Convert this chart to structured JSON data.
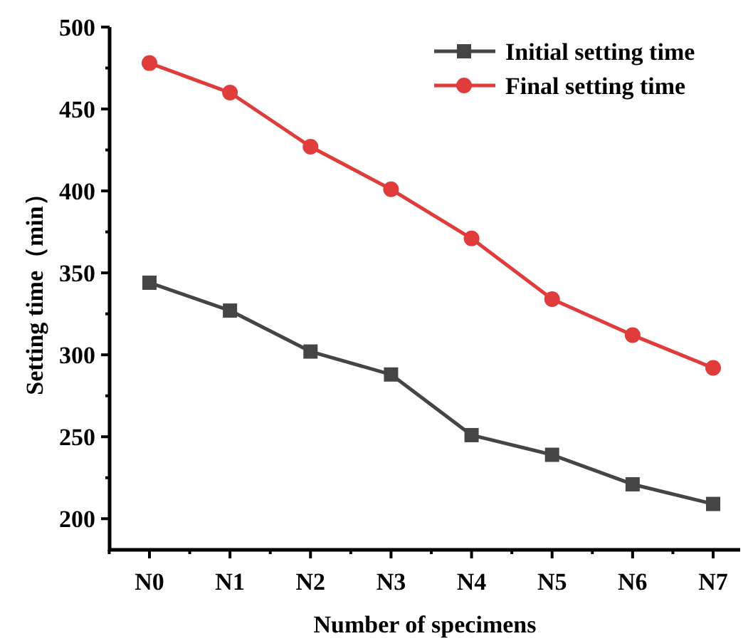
{
  "chart_data": {
    "type": "line",
    "xlabel": "Number of specimens",
    "ylabel": "Setting time（min）",
    "categories": [
      "N0",
      "N1",
      "N2",
      "N3",
      "N4",
      "N5",
      "N6",
      "N7"
    ],
    "series": [
      {
        "name": "Initial setting time",
        "color": "#454545",
        "marker": "square",
        "values": [
          344,
          327,
          302,
          288,
          251,
          239,
          221,
          209
        ]
      },
      {
        "name": "Final setting time",
        "color": "#e03c3c",
        "marker": "circle",
        "values": [
          478,
          460,
          427,
          401,
          371,
          334,
          312,
          292
        ]
      }
    ],
    "ylim": [
      181,
      500
    ],
    "yticks": [
      200,
      250,
      300,
      350,
      400,
      450,
      500
    ],
    "legend": "top right",
    "grid": false,
    "line_style": "solid"
  }
}
